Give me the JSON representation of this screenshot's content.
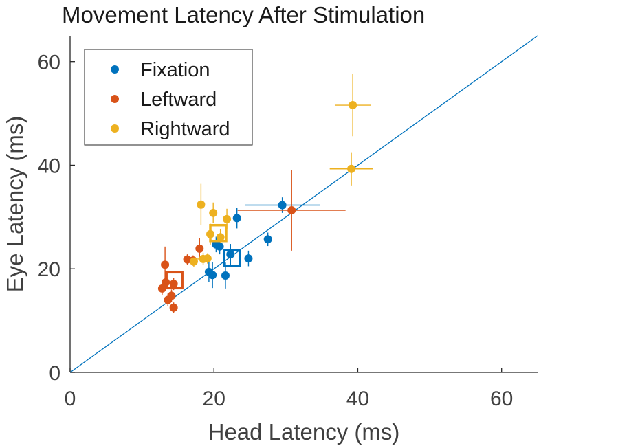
{
  "chart_data": {
    "type": "scatter",
    "title": "Movement Latency After Stimulation",
    "xlabel": "Head Latency (ms)",
    "ylabel": "Eye Latency (ms)",
    "xlim": [
      0,
      65
    ],
    "ylim": [
      0,
      65
    ],
    "xticks": [
      0,
      20,
      40,
      60
    ],
    "yticks": [
      0,
      20,
      40,
      60
    ],
    "xtick_labels": [
      "0",
      "20",
      "40",
      "60"
    ],
    "ytick_labels": [
      "0",
      "20",
      "40",
      "60"
    ],
    "grid": false,
    "legend_position": "top-left",
    "reference_line": {
      "x": [
        0,
        65
      ],
      "y": [
        0,
        65
      ],
      "color": "#0072BD"
    },
    "series": [
      {
        "name": "Fixation",
        "color": "#0072BD",
        "points": [
          {
            "x": 29.5,
            "y": 32.3,
            "xerr": 5.2,
            "yerr": 1.5
          },
          {
            "x": 23.2,
            "y": 29.8,
            "xerr": 0.5,
            "yerr": 2.0
          },
          {
            "x": 27.5,
            "y": 25.7,
            "xerr": 0.5,
            "yerr": 1.3
          },
          {
            "x": 20.3,
            "y": 24.7,
            "xerr": 0.4,
            "yerr": 1.5
          },
          {
            "x": 20.8,
            "y": 24.3,
            "xerr": 0.4,
            "yerr": 1.5
          },
          {
            "x": 22.3,
            "y": 22.8,
            "xerr": 0.3,
            "yerr": 2.0
          },
          {
            "x": 24.8,
            "y": 22.0,
            "xerr": 0.3,
            "yerr": 1.5
          },
          {
            "x": 19.3,
            "y": 19.4,
            "xerr": 0.4,
            "yerr": 2.0
          },
          {
            "x": 19.8,
            "y": 18.8,
            "xerr": 0.4,
            "yerr": 2.5
          },
          {
            "x": 21.6,
            "y": 18.7,
            "xerr": 0.4,
            "yerr": 2.5
          }
        ],
        "mean": {
          "x": 22.5,
          "y": 22.1
        }
      },
      {
        "name": "Leftward",
        "color": "#D95319",
        "points": [
          {
            "x": 30.8,
            "y": 31.3,
            "xerr": 7.5,
            "yerr": 7.8
          },
          {
            "x": 18.0,
            "y": 23.9,
            "xerr": 0.4,
            "yerr": 2.0
          },
          {
            "x": 16.3,
            "y": 21.8,
            "xerr": 0.4,
            "yerr": 1.0
          },
          {
            "x": 17.1,
            "y": 21.6,
            "xerr": 0.4,
            "yerr": 1.0
          },
          {
            "x": 13.2,
            "y": 20.8,
            "xerr": 0.4,
            "yerr": 3.5
          },
          {
            "x": 13.3,
            "y": 17.4,
            "xerr": 0.4,
            "yerr": 1.5
          },
          {
            "x": 14.4,
            "y": 17.1,
            "xerr": 0.4,
            "yerr": 1.2
          },
          {
            "x": 12.8,
            "y": 16.2,
            "xerr": 0.4,
            "yerr": 1.2
          },
          {
            "x": 14.1,
            "y": 14.8,
            "xerr": 0.4,
            "yerr": 1.2
          },
          {
            "x": 13.6,
            "y": 14.0,
            "xerr": 0.4,
            "yerr": 1.2
          },
          {
            "x": 14.4,
            "y": 12.5,
            "xerr": 0.4,
            "yerr": 1.0
          }
        ],
        "mean": {
          "x": 14.5,
          "y": 17.8
        }
      },
      {
        "name": "Rightward",
        "color": "#EDB120",
        "points": [
          {
            "x": 39.3,
            "y": 51.6,
            "xerr": 2.5,
            "yerr": 6.0
          },
          {
            "x": 39.1,
            "y": 39.3,
            "xerr": 3.0,
            "yerr": 3.2
          },
          {
            "x": 18.2,
            "y": 32.4,
            "xerr": 0.5,
            "yerr": 4.0
          },
          {
            "x": 19.9,
            "y": 30.8,
            "xerr": 0.5,
            "yerr": 2.0
          },
          {
            "x": 21.8,
            "y": 29.6,
            "xerr": 0.5,
            "yerr": 2.0
          },
          {
            "x": 19.5,
            "y": 26.7,
            "xerr": 0.5,
            "yerr": 2.0
          },
          {
            "x": 20.9,
            "y": 26.1,
            "xerr": 0.5,
            "yerr": 1.5
          },
          {
            "x": 19.1,
            "y": 22.0,
            "xerr": 0.5,
            "yerr": 1.0
          },
          {
            "x": 18.5,
            "y": 21.9,
            "xerr": 1.0,
            "yerr": 1.2
          },
          {
            "x": 17.2,
            "y": 21.4,
            "xerr": 0.5,
            "yerr": 1.0
          }
        ],
        "mean": {
          "x": 20.6,
          "y": 26.9
        }
      }
    ]
  }
}
